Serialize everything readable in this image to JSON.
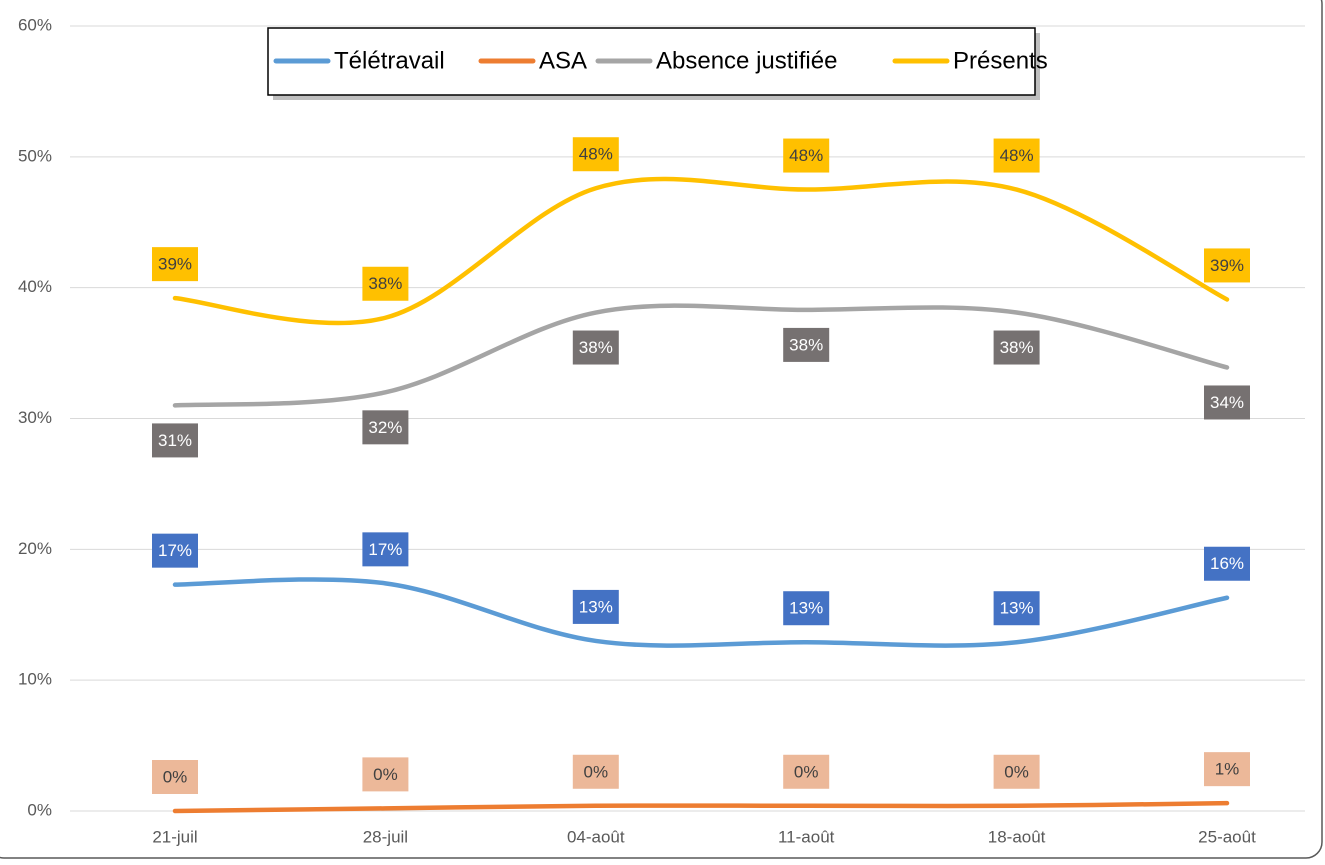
{
  "chart_data": {
    "type": "line",
    "categories": [
      "21-juil",
      "28-juil",
      "04-août",
      "11-août",
      "18-août",
      "25-août"
    ],
    "series": [
      {
        "name": "Télétravail",
        "color": "#5b9bd5",
        "label_color": "#4472c4",
        "label_text_color": "#ffffff",
        "values": [
          17.3,
          17.4,
          13.0,
          12.9,
          12.9,
          16.3
        ],
        "value_labels": [
          "17%",
          "17%",
          "13%",
          "13%",
          "13%",
          "16%"
        ]
      },
      {
        "name": "ASA",
        "color": "#ed7d31",
        "label_color": "#ecb899",
        "label_text_color": "#404040",
        "values": [
          0,
          0.2,
          0.4,
          0.4,
          0.4,
          0.6
        ],
        "value_labels": [
          "0%",
          "0%",
          "0%",
          "0%",
          "0%",
          "1%"
        ]
      },
      {
        "name": "Absence justifiée",
        "color": "#a5a5a5",
        "label_color": "#767171",
        "label_text_color": "#ffffff",
        "values": [
          31.0,
          32.0,
          38.1,
          38.3,
          38.1,
          33.9
        ],
        "value_labels": [
          "31%",
          "32%",
          "38%",
          "38%",
          "38%",
          "34%"
        ]
      },
      {
        "name": "Présents",
        "color": "#ffc000",
        "label_color": "#ffc000",
        "label_text_color": "#404040",
        "values": [
          39.2,
          37.7,
          47.6,
          47.5,
          47.5,
          39.1
        ],
        "value_labels": [
          "39%",
          "38%",
          "48%",
          "48%",
          "48%",
          "39%"
        ]
      }
    ],
    "ylim": [
      0,
      60
    ],
    "yticks": [
      {
        "value": 0,
        "label": "0%"
      },
      {
        "value": 10,
        "label": "10%"
      },
      {
        "value": 20,
        "label": "20%"
      },
      {
        "value": 30,
        "label": "30%"
      },
      {
        "value": 40,
        "label": "40%"
      },
      {
        "value": 50,
        "label": "50%"
      },
      {
        "value": 60,
        "label": "60%"
      }
    ],
    "grid": true,
    "smooth": true,
    "legend": "top"
  }
}
